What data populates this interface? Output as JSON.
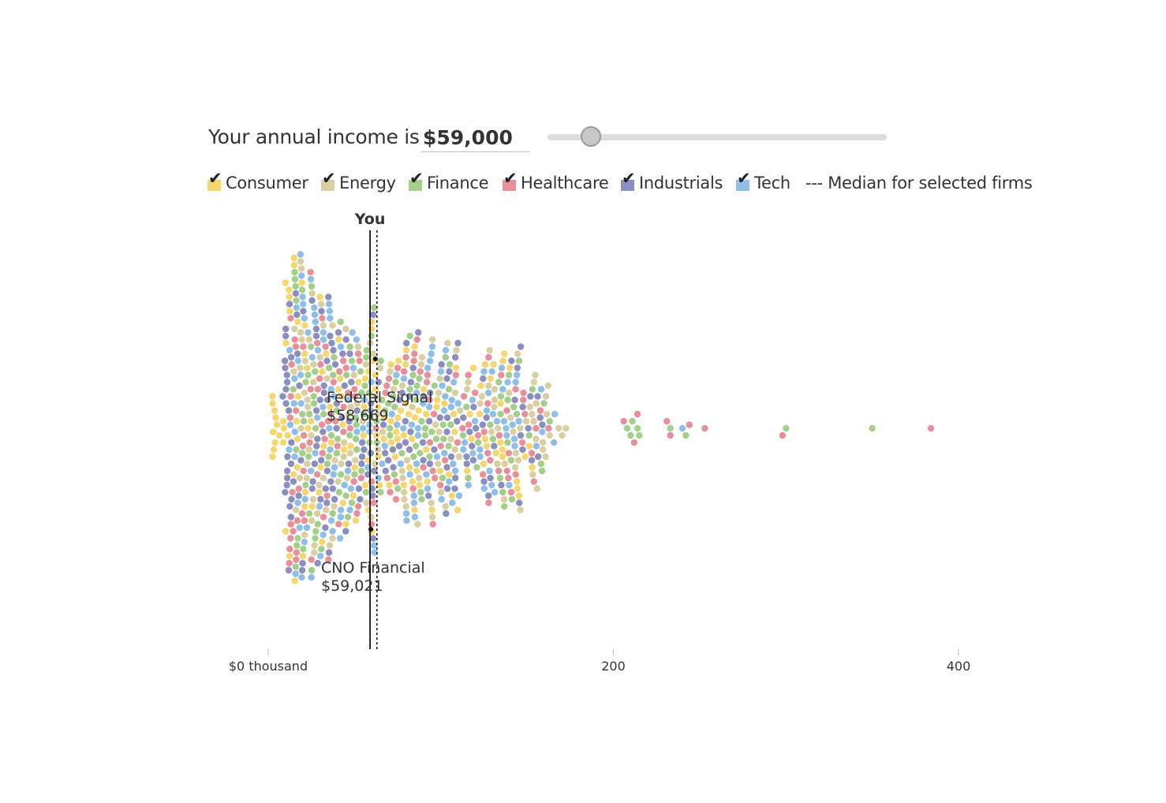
{
  "controls": {
    "income_label": "Your annual income is",
    "income_value": "$59,000",
    "slider_value": 59000
  },
  "legend": {
    "items": [
      {
        "label": "Consumer",
        "color": "#f5d76e",
        "checked": true
      },
      {
        "label": "Energy",
        "color": "#d9cfa0",
        "checked": true
      },
      {
        "label": "Finance",
        "color": "#a3cf8a",
        "checked": true
      },
      {
        "label": "Healthcare",
        "color": "#e8909a",
        "checked": true
      },
      {
        "label": "Industrials",
        "color": "#8b8fbf",
        "checked": true
      },
      {
        "label": "Tech",
        "color": "#8fbfe6",
        "checked": true
      }
    ],
    "median_label": "--- Median for selected firms"
  },
  "chart_data": {
    "type": "scatter",
    "xlabel": "",
    "ylabel": "",
    "x_unit": "thousand",
    "xlim": [
      0,
      400
    ],
    "x_ticks": [
      {
        "value": 0,
        "label": "$0 thousand"
      },
      {
        "value": 200,
        "label": "200"
      },
      {
        "value": 400,
        "label": "400"
      }
    ],
    "you_label": "You",
    "you_value": 59,
    "median_value": 63,
    "annotations": [
      {
        "name": "Federal Signal",
        "value": "$58,669"
      },
      {
        "name": "CNO Financial",
        "value": "$59,021"
      }
    ],
    "series": [
      {
        "name": "Consumer",
        "color": "#f5d76e"
      },
      {
        "name": "Energy",
        "color": "#d9cfa0"
      },
      {
        "name": "Finance",
        "color": "#a3cf8a"
      },
      {
        "name": "Healthcare",
        "color": "#e8909a"
      },
      {
        "name": "Industrials",
        "color": "#8b8fbf"
      },
      {
        "name": "Tech",
        "color": "#8fbfe6"
      }
    ],
    "outliers": [
      {
        "sector": "Finance",
        "x": 208
      },
      {
        "sector": "Finance",
        "x": 214
      },
      {
        "sector": "Finance",
        "x": 215
      },
      {
        "sector": "Finance",
        "x": 211
      },
      {
        "sector": "Finance",
        "x": 210
      },
      {
        "sector": "Healthcare",
        "x": 212
      },
      {
        "sector": "Healthcare",
        "x": 214
      },
      {
        "sector": "Healthcare",
        "x": 206
      },
      {
        "sector": "Finance",
        "x": 233
      },
      {
        "sector": "Healthcare",
        "x": 233
      },
      {
        "sector": "Healthcare",
        "x": 231
      },
      {
        "sector": "Tech",
        "x": 240
      },
      {
        "sector": "Finance",
        "x": 242
      },
      {
        "sector": "Healthcare",
        "x": 244
      },
      {
        "sector": "Healthcare",
        "x": 253
      },
      {
        "sector": "Finance",
        "x": 300
      },
      {
        "sector": "Healthcare",
        "x": 298
      },
      {
        "sector": "Finance",
        "x": 350
      },
      {
        "sector": "Healthcare",
        "x": 384
      }
    ]
  }
}
